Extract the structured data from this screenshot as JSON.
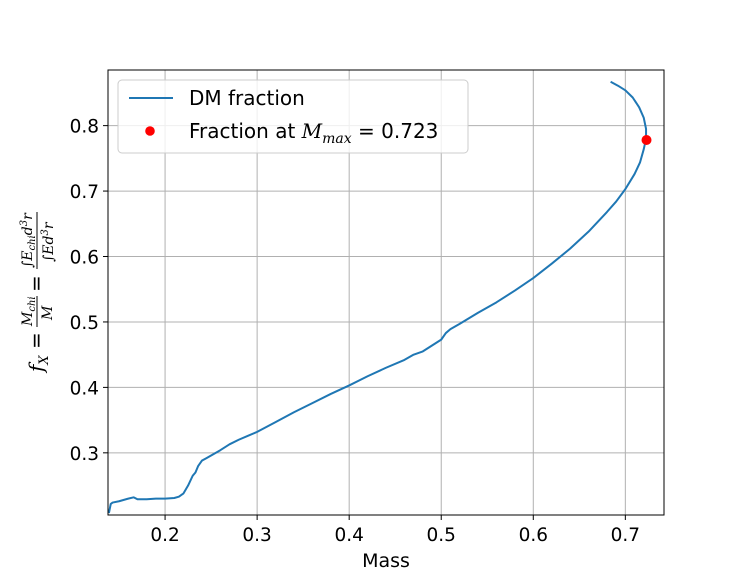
{
  "chart_data": {
    "type": "line",
    "xlabel": "Mass",
    "ylabel": "f_X = M_chi/M = ∫E_chi d³r / ∫E d³r",
    "xlim": [
      0.138,
      0.742
    ],
    "ylim": [
      0.205,
      0.885
    ],
    "x_ticks": [
      0.2,
      0.3,
      0.4,
      0.5,
      0.6,
      0.7
    ],
    "x_tick_labels": [
      "0.2",
      "0.3",
      "0.4",
      "0.5",
      "0.6",
      "0.7"
    ],
    "y_ticks": [
      0.3,
      0.4,
      0.5,
      0.6,
      0.7,
      0.8
    ],
    "y_tick_labels": [
      "0.3",
      "0.4",
      "0.5",
      "0.6",
      "0.7",
      "0.8"
    ],
    "grid": true,
    "legend_position": "upper-left",
    "colors": {
      "line": "#1f77b4",
      "point": "#ff0000"
    },
    "series": [
      {
        "name": "DM fraction",
        "style": "line",
        "points": [
          [
            0.139,
            0.208
          ],
          [
            0.14,
            0.215
          ],
          [
            0.141,
            0.222
          ],
          [
            0.143,
            0.224
          ],
          [
            0.15,
            0.226
          ],
          [
            0.16,
            0.23
          ],
          [
            0.166,
            0.232
          ],
          [
            0.17,
            0.229
          ],
          [
            0.18,
            0.229
          ],
          [
            0.19,
            0.23
          ],
          [
            0.2,
            0.23
          ],
          [
            0.21,
            0.231
          ],
          [
            0.215,
            0.233
          ],
          [
            0.22,
            0.238
          ],
          [
            0.225,
            0.25
          ],
          [
            0.23,
            0.265
          ],
          [
            0.233,
            0.27
          ],
          [
            0.236,
            0.28
          ],
          [
            0.24,
            0.288
          ],
          [
            0.245,
            0.292
          ],
          [
            0.25,
            0.296
          ],
          [
            0.26,
            0.304
          ],
          [
            0.27,
            0.313
          ],
          [
            0.28,
            0.32
          ],
          [
            0.29,
            0.326
          ],
          [
            0.3,
            0.332
          ],
          [
            0.32,
            0.347
          ],
          [
            0.34,
            0.362
          ],
          [
            0.36,
            0.376
          ],
          [
            0.38,
            0.39
          ],
          [
            0.4,
            0.403
          ],
          [
            0.42,
            0.417
          ],
          [
            0.44,
            0.43
          ],
          [
            0.46,
            0.442
          ],
          [
            0.47,
            0.45
          ],
          [
            0.48,
            0.455
          ],
          [
            0.49,
            0.464
          ],
          [
            0.5,
            0.473
          ],
          [
            0.505,
            0.483
          ],
          [
            0.51,
            0.489
          ],
          [
            0.52,
            0.497
          ],
          [
            0.54,
            0.514
          ],
          [
            0.56,
            0.53
          ],
          [
            0.58,
            0.548
          ],
          [
            0.6,
            0.567
          ],
          [
            0.62,
            0.589
          ],
          [
            0.64,
            0.612
          ],
          [
            0.66,
            0.638
          ],
          [
            0.68,
            0.668
          ],
          [
            0.69,
            0.684
          ],
          [
            0.7,
            0.703
          ],
          [
            0.71,
            0.726
          ],
          [
            0.716,
            0.744
          ],
          [
            0.72,
            0.764
          ],
          [
            0.7225,
            0.78
          ],
          [
            0.7225,
            0.795
          ],
          [
            0.72,
            0.812
          ],
          [
            0.715,
            0.828
          ],
          [
            0.708,
            0.843
          ],
          [
            0.7,
            0.854
          ],
          [
            0.692,
            0.861
          ],
          [
            0.684,
            0.867
          ]
        ]
      },
      {
        "name": "Fraction at M_max = 0.723",
        "style": "scatter",
        "points": [
          [
            0.723,
            0.778
          ]
        ]
      }
    ]
  }
}
